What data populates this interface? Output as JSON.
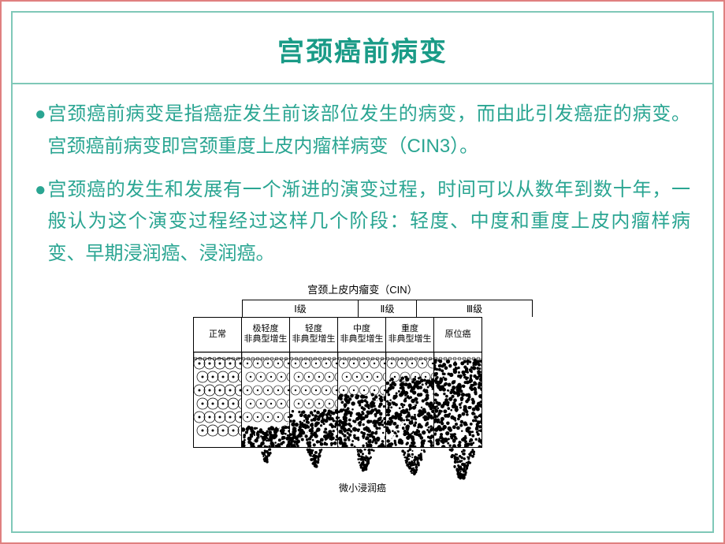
{
  "title": "宫颈癌前病变",
  "bullet1": "宫颈癌前病变是指癌症发生前该部位发生的病变，而由此引发癌症的病变。宫颈癌前病变即宫颈重度上皮内瘤样病变（CIN3）。",
  "bullet2": "宫颈癌的发生和发展有一个渐进的演变过程，时间可以从数年到数十年，一般认为这个演变过程经过这样几个阶段：轻度、中度和重度上皮内瘤样病变、早期浸润癌、浸润癌。",
  "diagram": {
    "topTitle": "宫颈上皮内瘤变（CIN）",
    "levels": [
      "Ⅰ级",
      "Ⅱ级",
      "Ⅲ级"
    ],
    "columns": [
      {
        "h1": "正常",
        "h2": "",
        "density": 0
      },
      {
        "h1": "极轻度",
        "h2": "非典型增生",
        "density": 1
      },
      {
        "h1": "轻度",
        "h2": "非典型增生",
        "density": 2
      },
      {
        "h1": "中度",
        "h2": "非典型增生",
        "density": 3
      },
      {
        "h1": "重度",
        "h2": "非典型增生",
        "density": 4
      },
      {
        "h1": "原位癌",
        "h2": "",
        "density": 5
      }
    ],
    "bottomLabel": "微小浸润癌"
  },
  "colors": {
    "outerBorder": "#e08080",
    "innerBorder": "#7fc8b8",
    "titleColor": "#1a9b87",
    "textColor": "#2aa592"
  }
}
